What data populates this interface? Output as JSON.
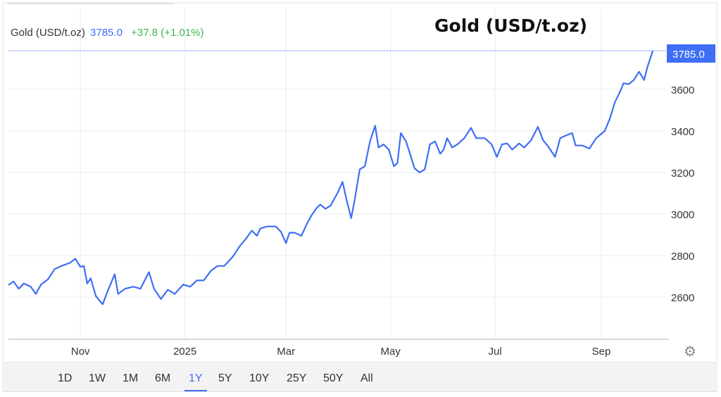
{
  "title": "Gold (USD/t.oz)",
  "legend": {
    "name": "Gold (USD/t.oz)",
    "price": "3785.0",
    "change": "+37.8 (+1.01%)"
  },
  "colors": {
    "line": "#3e6ef5",
    "change": "#3cb84a",
    "grid": "#e6ebf0"
  },
  "ranges": [
    "1D",
    "1W",
    "1M",
    "6M",
    "1Y",
    "5Y",
    "10Y",
    "25Y",
    "50Y",
    "All"
  ],
  "active_range": "1Y",
  "settings_icon": "gear-icon",
  "chart_data": {
    "type": "line",
    "title": "Gold (USD/t.oz)",
    "xlim": [
      "2024-09-20",
      "2025-10-01"
    ],
    "ylim": [
      2480,
      3900
    ],
    "grid": true,
    "x_ticks": [
      {
        "date": "2024-11-01",
        "label": "Nov"
      },
      {
        "date": "2025-01-01",
        "label": "2025"
      },
      {
        "date": "2025-03-01",
        "label": "Mar"
      },
      {
        "date": "2025-05-01",
        "label": "May"
      },
      {
        "date": "2025-07-01",
        "label": "Jul"
      },
      {
        "date": "2025-09-01",
        "label": "Sep"
      }
    ],
    "y_ticks": [
      2600,
      2800,
      3000,
      3200,
      3400,
      3600
    ],
    "last_value_label": "3785.0",
    "series": [
      {
        "points": [
          [
            "2024-09-20",
            2658
          ],
          [
            "2024-09-23",
            2675
          ],
          [
            "2024-09-26",
            2640
          ],
          [
            "2024-09-29",
            2665
          ],
          [
            "2024-10-03",
            2650
          ],
          [
            "2024-10-06",
            2615
          ],
          [
            "2024-10-09",
            2660
          ],
          [
            "2024-10-13",
            2685
          ],
          [
            "2024-10-17",
            2735
          ],
          [
            "2024-10-21",
            2750
          ],
          [
            "2024-10-26",
            2765
          ],
          [
            "2024-10-29",
            2785
          ],
          [
            "2024-11-01",
            2745
          ],
          [
            "2024-11-03",
            2750
          ],
          [
            "2024-11-05",
            2665
          ],
          [
            "2024-11-07",
            2690
          ],
          [
            "2024-11-10",
            2605
          ],
          [
            "2024-11-14",
            2565
          ],
          [
            "2024-11-17",
            2630
          ],
          [
            "2024-11-21",
            2710
          ],
          [
            "2024-11-23",
            2615
          ],
          [
            "2024-11-27",
            2640
          ],
          [
            "2024-12-02",
            2650
          ],
          [
            "2024-12-06",
            2640
          ],
          [
            "2024-12-11",
            2720
          ],
          [
            "2024-12-14",
            2640
          ],
          [
            "2024-12-18",
            2590
          ],
          [
            "2024-12-22",
            2635
          ],
          [
            "2024-12-26",
            2615
          ],
          [
            "2024-12-31",
            2660
          ],
          [
            "2025-01-04",
            2650
          ],
          [
            "2025-01-08",
            2680
          ],
          [
            "2025-01-12",
            2680
          ],
          [
            "2025-01-16",
            2725
          ],
          [
            "2025-01-20",
            2750
          ],
          [
            "2025-01-24",
            2750
          ],
          [
            "2025-01-29",
            2795
          ],
          [
            "2025-02-02",
            2845
          ],
          [
            "2025-02-06",
            2885
          ],
          [
            "2025-02-09",
            2920
          ],
          [
            "2025-02-12",
            2895
          ],
          [
            "2025-02-14",
            2930
          ],
          [
            "2025-02-18",
            2940
          ],
          [
            "2025-02-23",
            2940
          ],
          [
            "2025-02-26",
            2915
          ],
          [
            "2025-03-01",
            2860
          ],
          [
            "2025-03-03",
            2910
          ],
          [
            "2025-03-06",
            2910
          ],
          [
            "2025-03-10",
            2895
          ],
          [
            "2025-03-13",
            2950
          ],
          [
            "2025-03-16",
            2995
          ],
          [
            "2025-03-19",
            3030
          ],
          [
            "2025-03-21",
            3045
          ],
          [
            "2025-03-24",
            3025
          ],
          [
            "2025-03-27",
            3040
          ],
          [
            "2025-03-31",
            3100
          ],
          [
            "2025-04-03",
            3155
          ],
          [
            "2025-04-05",
            3080
          ],
          [
            "2025-04-08",
            2980
          ],
          [
            "2025-04-10",
            3065
          ],
          [
            "2025-04-13",
            3215
          ],
          [
            "2025-04-16",
            3230
          ],
          [
            "2025-04-19",
            3350
          ],
          [
            "2025-04-22",
            3425
          ],
          [
            "2025-04-24",
            3320
          ],
          [
            "2025-04-27",
            3335
          ],
          [
            "2025-04-30",
            3310
          ],
          [
            "2025-05-03",
            3230
          ],
          [
            "2025-05-05",
            3245
          ],
          [
            "2025-05-07",
            3390
          ],
          [
            "2025-05-10",
            3350
          ],
          [
            "2025-05-12",
            3300
          ],
          [
            "2025-05-15",
            3220
          ],
          [
            "2025-05-18",
            3200
          ],
          [
            "2025-05-21",
            3215
          ],
          [
            "2025-05-24",
            3335
          ],
          [
            "2025-05-27",
            3350
          ],
          [
            "2025-05-30",
            3290
          ],
          [
            "2025-06-01",
            3310
          ],
          [
            "2025-06-03",
            3365
          ],
          [
            "2025-06-06",
            3320
          ],
          [
            "2025-06-09",
            3335
          ],
          [
            "2025-06-13",
            3365
          ],
          [
            "2025-06-17",
            3415
          ],
          [
            "2025-06-20",
            3365
          ],
          [
            "2025-06-25",
            3365
          ],
          [
            "2025-06-29",
            3335
          ],
          [
            "2025-07-02",
            3275
          ],
          [
            "2025-07-05",
            3335
          ],
          [
            "2025-07-08",
            3340
          ],
          [
            "2025-07-11",
            3310
          ],
          [
            "2025-07-15",
            3340
          ],
          [
            "2025-07-18",
            3320
          ],
          [
            "2025-07-22",
            3355
          ],
          [
            "2025-07-26",
            3420
          ],
          [
            "2025-07-29",
            3355
          ],
          [
            "2025-08-01",
            3325
          ],
          [
            "2025-08-05",
            3275
          ],
          [
            "2025-08-08",
            3365
          ],
          [
            "2025-08-12",
            3380
          ],
          [
            "2025-08-15",
            3390
          ],
          [
            "2025-08-17",
            3330
          ],
          [
            "2025-08-21",
            3330
          ],
          [
            "2025-08-25",
            3315
          ],
          [
            "2025-08-29",
            3365
          ],
          [
            "2025-09-03",
            3400
          ],
          [
            "2025-09-06",
            3460
          ],
          [
            "2025-09-09",
            3540
          ],
          [
            "2025-09-12",
            3590
          ],
          [
            "2025-09-14",
            3630
          ],
          [
            "2025-09-17",
            3625
          ],
          [
            "2025-09-20",
            3645
          ],
          [
            "2025-09-23",
            3685
          ],
          [
            "2025-09-25",
            3660
          ],
          [
            "2025-09-26",
            3645
          ],
          [
            "2025-09-28",
            3710
          ],
          [
            "2025-10-01",
            3785
          ]
        ]
      }
    ]
  }
}
